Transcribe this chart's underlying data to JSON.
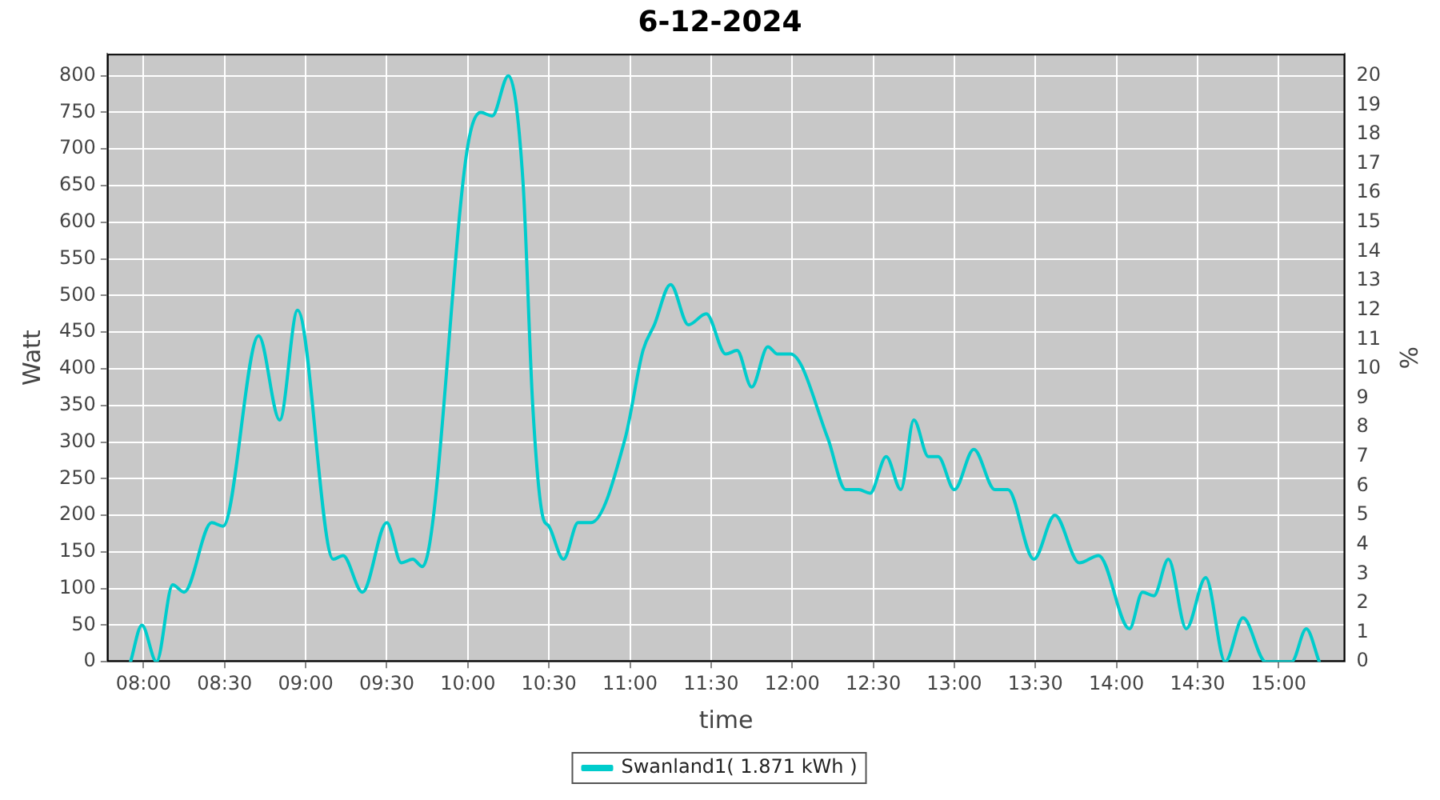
{
  "chart_data": {
    "type": "line",
    "title": "6-12-2024",
    "xlabel": "time",
    "ylabel": "Watt",
    "y2label": "%",
    "series": [
      {
        "name": "Swanland1( 1.871 kWh )",
        "color": "#00cccc",
        "x": [
          7.92,
          7.99,
          8.08,
          8.18,
          8.25,
          8.42,
          8.49,
          8.71,
          8.84,
          8.95,
          9.17,
          9.23,
          9.35,
          9.5,
          9.59,
          9.66,
          9.72,
          10.0,
          10.08,
          10.15,
          10.25,
          10.34,
          10.4,
          10.46,
          10.5,
          10.59,
          10.68,
          10.76,
          10.97,
          11.08,
          11.15,
          11.25,
          11.36,
          11.47,
          11.59,
          11.66,
          11.75,
          11.85,
          11.91,
          11.99,
          12.22,
          12.33,
          12.41,
          12.48,
          12.58,
          12.67,
          12.75,
          12.84,
          12.9,
          13.0,
          13.12,
          13.25,
          13.33,
          13.49,
          13.62,
          13.77,
          13.89,
          14.08,
          14.16,
          14.23,
          14.32,
          14.43,
          14.55,
          14.67,
          14.78,
          14.92,
          15.08,
          15.17,
          15.25
        ],
        "values": [
          0,
          50,
          0,
          105,
          95,
          190,
          185,
          445,
          330,
          480,
          140,
          145,
          95,
          190,
          135,
          140,
          130,
          705,
          750,
          745,
          800,
          655,
          350,
          200,
          185,
          140,
          190,
          190,
          305,
          425,
          460,
          515,
          460,
          475,
          420,
          425,
          375,
          430,
          420,
          420,
          305,
          235,
          235,
          230,
          280,
          235,
          330,
          280,
          280,
          235,
          290,
          235,
          235,
          140,
          200,
          135,
          145,
          45,
          95,
          90,
          140,
          45,
          115,
          0,
          60,
          0,
          0,
          45,
          0
        ]
      }
    ],
    "xlim": [
      7.775,
      15.41
    ],
    "xticks": [
      {
        "value": 8,
        "label": "08:00"
      },
      {
        "value": 8.5,
        "label": "08:30"
      },
      {
        "value": 9,
        "label": "09:00"
      },
      {
        "value": 9.5,
        "label": "09:30"
      },
      {
        "value": 10,
        "label": "10:00"
      },
      {
        "value": 10.5,
        "label": "10:30"
      },
      {
        "value": 11,
        "label": "11:00"
      },
      {
        "value": 11.5,
        "label": "11:30"
      },
      {
        "value": 12,
        "label": "12:00"
      },
      {
        "value": 12.5,
        "label": "12:30"
      },
      {
        "value": 13,
        "label": "13:00"
      },
      {
        "value": 13.5,
        "label": "13:30"
      },
      {
        "value": 14,
        "label": "14:00"
      },
      {
        "value": 14.5,
        "label": "14:30"
      },
      {
        "value": 15,
        "label": "15:00"
      }
    ],
    "ylim": [
      0,
      830
    ],
    "yticks": [
      0,
      50,
      100,
      150,
      200,
      250,
      300,
      350,
      400,
      450,
      500,
      550,
      600,
      650,
      700,
      750,
      800
    ],
    "y2lim": [
      0,
      20.75
    ],
    "y2ticks": [
      0,
      1,
      2,
      3,
      4,
      5,
      6,
      7,
      8,
      9,
      10,
      11,
      12,
      13,
      14,
      15,
      16,
      17,
      18,
      19,
      20
    ],
    "grid": true,
    "legend": "bottom",
    "marker": "none",
    "line_style": "solid"
  }
}
